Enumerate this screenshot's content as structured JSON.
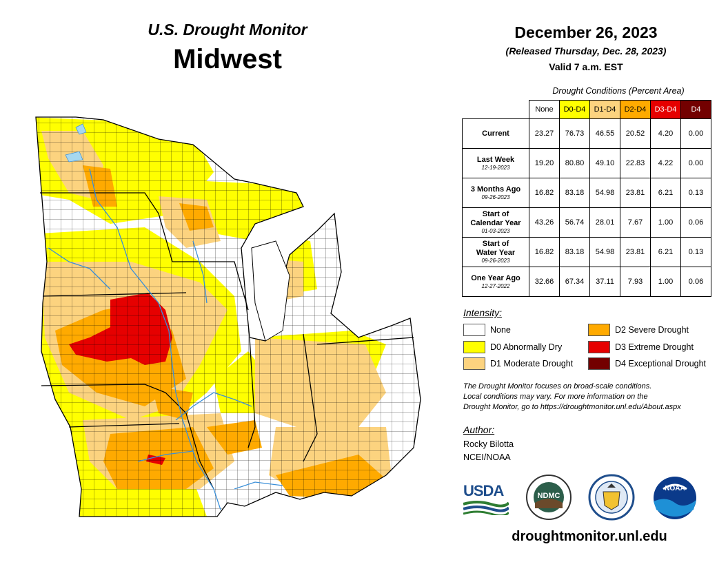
{
  "header": {
    "subtitle": "U.S. Drought Monitor",
    "region": "Midwest"
  },
  "date_block": {
    "date": "December 26, 2023",
    "released": "(Released Thursday, Dec. 28, 2023)",
    "valid": "Valid 7 a.m. EST"
  },
  "table": {
    "caption": "Drought Conditions (Percent Area)",
    "columns": [
      {
        "label": "None",
        "color": "#ffffff",
        "text_color": "#000000"
      },
      {
        "label": "D0-D4",
        "color": "#ffff00",
        "text_color": "#000000"
      },
      {
        "label": "D1-D4",
        "color": "#fcd37f",
        "text_color": "#000000"
      },
      {
        "label": "D2-D4",
        "color": "#ffaa00",
        "text_color": "#000000"
      },
      {
        "label": "D3-D4",
        "color": "#e60000",
        "text_color": "#ffffff"
      },
      {
        "label": "D4",
        "color": "#730000",
        "text_color": "#ffffff"
      }
    ],
    "rows": [
      {
        "label": "Current",
        "label2": "",
        "date": "",
        "values": [
          "23.27",
          "76.73",
          "46.55",
          "20.52",
          "4.20",
          "0.00"
        ]
      },
      {
        "label": "Last Week",
        "label2": "",
        "date": "12-19-2023",
        "values": [
          "19.20",
          "80.80",
          "49.10",
          "22.83",
          "4.22",
          "0.00"
        ]
      },
      {
        "label": "3 Months Ago",
        "label2": "",
        "date": "09-26-2023",
        "values": [
          "16.82",
          "83.18",
          "54.98",
          "23.81",
          "6.21",
          "0.13"
        ]
      },
      {
        "label": "Start of",
        "label2": "Calendar Year",
        "date": "01-03-2023",
        "values": [
          "43.26",
          "56.74",
          "28.01",
          "7.67",
          "1.00",
          "0.06"
        ]
      },
      {
        "label": "Start of",
        "label2": "Water Year",
        "date": "09-26-2023",
        "values": [
          "16.82",
          "83.18",
          "54.98",
          "23.81",
          "6.21",
          "0.13"
        ]
      },
      {
        "label": "One Year Ago",
        "label2": "",
        "date": "12-27-2022",
        "values": [
          "32.66",
          "67.34",
          "37.11",
          "7.93",
          "1.00",
          "0.06"
        ]
      }
    ]
  },
  "legend": {
    "heading": "Intensity:",
    "items": [
      {
        "label": "None",
        "color": "#ffffff"
      },
      {
        "label": "D0 Abnormally Dry",
        "color": "#ffff00"
      },
      {
        "label": "D1 Moderate Drought",
        "color": "#fcd37f"
      },
      {
        "label": "D2 Severe Drought",
        "color": "#ffaa00"
      },
      {
        "label": "D3 Extreme Drought",
        "color": "#e60000"
      },
      {
        "label": "D4 Exceptional Drought",
        "color": "#730000"
      }
    ]
  },
  "note": {
    "line1": "The Drought Monitor focuses on broad-scale conditions.",
    "line2": "Local conditions may vary. For more information on the",
    "line3": "Drought Monitor, go to https://droughtmonitor.unl.edu/About.aspx"
  },
  "author": {
    "heading": "Author:",
    "name": "Rocky Bilotta",
    "org": "NCEI/NOAA"
  },
  "logos": {
    "usda": "USDA",
    "ndmc": "NDMC",
    "noaa": "NOAA"
  },
  "footer_url": "droughtmonitor.unl.edu",
  "map_colors": {
    "none": "#ffffff",
    "d0": "#ffff00",
    "d1": "#fcd37f",
    "d2": "#ffaa00",
    "d3": "#e60000",
    "border": "#000000",
    "water": "#a6d8f0",
    "river": "#3a8fd8"
  }
}
